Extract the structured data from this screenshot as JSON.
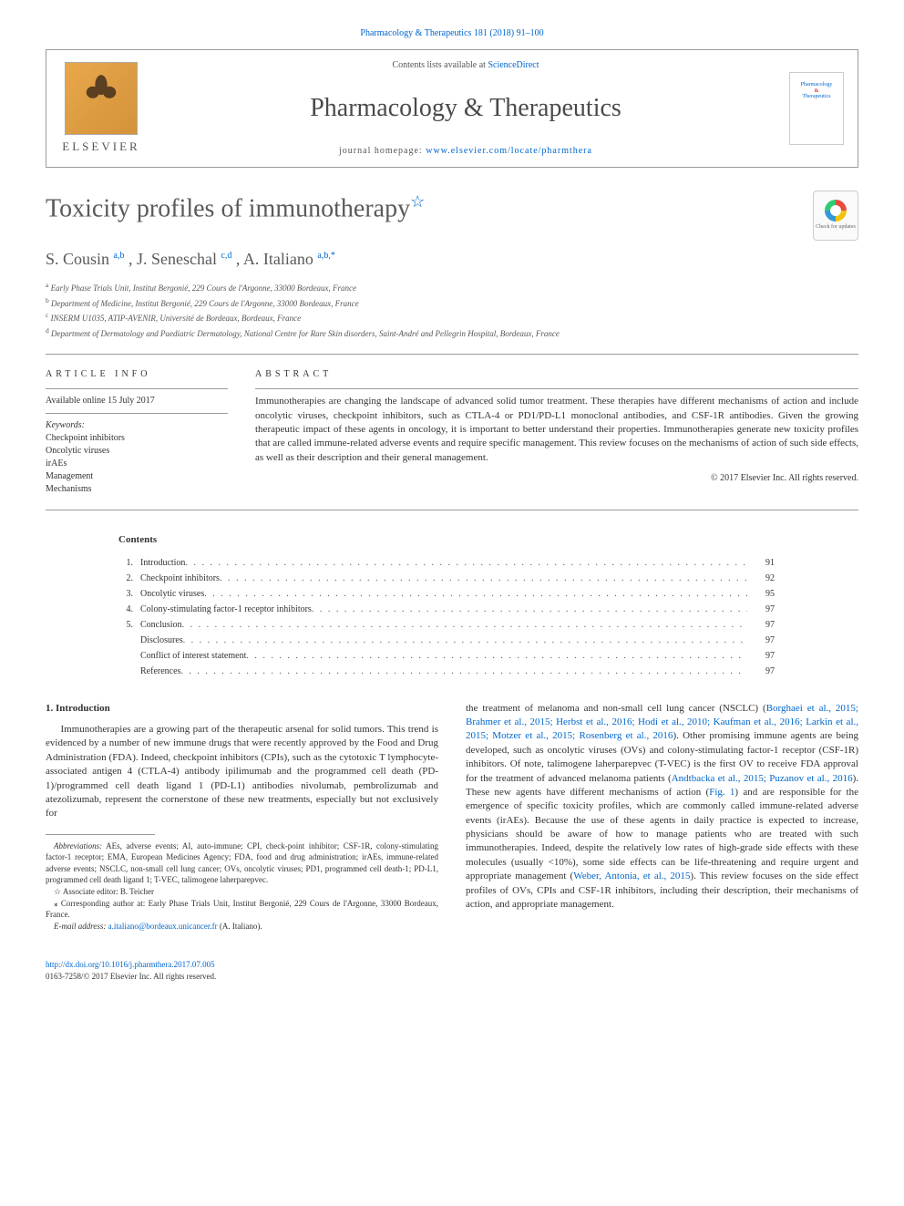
{
  "top_link": {
    "label": "Pharmacology & Therapeutics 181 (2018) 91–100"
  },
  "header": {
    "contents_prefix": "Contents lists available at ",
    "contents_link": "ScienceDirect",
    "journal": "Pharmacology & Therapeutics",
    "homepage_prefix": "journal homepage: ",
    "homepage_link": "www.elsevier.com/locate/pharmthera",
    "elsevier": "ELSEVIER",
    "cover_line1": "Pharmacology",
    "cover_line2": "&",
    "cover_line3": "Therapeutics"
  },
  "title": "Toxicity profiles of immunotherapy",
  "check_updates": "Check for updates",
  "authors_html": [
    {
      "name": "S. Cousin ",
      "sup": "a,b"
    },
    {
      "name": ", J. Seneschal ",
      "sup": "c,d"
    },
    {
      "name": ", A. Italiano ",
      "sup": "a,b,",
      "star": "*"
    }
  ],
  "affiliations": [
    {
      "sup": "a",
      "text": "Early Phase Trials Unit, Institut Bergonié, 229 Cours de l'Argonne, 33000 Bordeaux, France"
    },
    {
      "sup": "b",
      "text": "Department of Medicine, Institut Bergonié, 229 Cours de l'Argonne, 33000 Bordeaux, France"
    },
    {
      "sup": "c",
      "text": "INSERM U1035, ATIP-AVENIR, Université de Bordeaux, Bordeaux, France"
    },
    {
      "sup": "d",
      "text": "Department of Dermatology and Paediatric Dermatology, National Centre for Rare Skin disorders, Saint-André and Pellegrin Hospital, Bordeaux, France"
    }
  ],
  "article_info": {
    "heading": "ARTICLE INFO",
    "available": "Available online 15 July 2017",
    "keywords_label": "Keywords:",
    "keywords": [
      "Checkpoint inhibitors",
      "Oncolytic viruses",
      "irAEs",
      "Management",
      "Mechanisms"
    ]
  },
  "abstract": {
    "heading": "ABSTRACT",
    "text": "Immunotherapies are changing the landscape of advanced solid tumor treatment. These therapies have different mechanisms of action and include oncolytic viruses, checkpoint inhibitors, such as CTLA-4 or PD1/PD-L1 monoclonal antibodies, and CSF-1R antibodies. Given the growing therapeutic impact of these agents in oncology, it is important to better understand their properties. Immunotherapies generate new toxicity profiles that are called immune-related adverse events and require specific management. This review focuses on the mechanisms of action of such side effects, as well as their description and their general management.",
    "copyright": "© 2017 Elsevier Inc. All rights reserved."
  },
  "contents": {
    "heading": "Contents",
    "items": [
      {
        "num": "1.",
        "text": "Introduction",
        "page": "91"
      },
      {
        "num": "2.",
        "text": "Checkpoint inhibitors",
        "page": "92"
      },
      {
        "num": "3.",
        "text": "Oncolytic viruses",
        "page": "95"
      },
      {
        "num": "4.",
        "text": "Colony-stimulating factor-1 receptor inhibitors",
        "page": "97"
      },
      {
        "num": "5.",
        "text": "Conclusion",
        "page": "97"
      },
      {
        "num": "",
        "text": "Disclosures",
        "page": "97"
      },
      {
        "num": "",
        "text": "Conflict of interest statement",
        "page": "97"
      },
      {
        "num": "",
        "text": "References",
        "page": "97"
      }
    ]
  },
  "intro": {
    "heading": "1. Introduction",
    "p1": "Immunotherapies are a growing part of the therapeutic arsenal for solid tumors. This trend is evidenced by a number of new immune drugs that were recently approved by the Food and Drug Administration (FDA). Indeed, checkpoint inhibitors (CPIs), such as the cytotoxic T lymphocyte-associated antigen 4 (CTLA-4) antibody ipilimumab and the programmed cell death (PD-1)/programmed cell death ligand 1 (PD-L1) antibodies nivolumab, pembrolizumab and atezolizumab, represent the cornerstone of these new treatments, especially but not exclusively for",
    "p2a": "the treatment of melanoma and non-small cell lung cancer (NSCLC) (",
    "p2_refs": "Borghaei et al., 2015; Brahmer et al., 2015; Herbst et al., 2016; Hodi et al., 2010; Kaufman et al., 2016; Larkin et al., 2015; Motzer et al., 2015; Rosenberg et al., 2016",
    "p2b": "). Other promising immune agents are being developed, such as oncolytic viruses (OVs) and colony-stimulating factor-1 receptor (CSF-1R) inhibitors. Of note, talimogene laherparepvec (T-VEC) is the first OV to receive FDA approval for the treatment of advanced melanoma patients (",
    "p2_refs2": "Andtbacka et al., 2015; Puzanov et al., 2016",
    "p2c": "). These new agents have different mechanisms of action (",
    "p2_fig": "Fig. 1",
    "p2d": ") and are responsible for the emergence of specific toxicity profiles, which are commonly called immune-related adverse events (irAEs). Because the use of these agents in daily practice is expected to increase, physicians should be aware of how to manage patients who are treated with such immunotherapies. Indeed, despite the relatively low rates of high-grade side effects with these molecules (usually <10%), some side effects can be life-threatening and require urgent and appropriate management (",
    "p2_refs3": "Weber, Antonia, et al., 2015",
    "p2e": "). This review focuses on the side effect profiles of OVs, CPIs and CSF-1R inhibitors, including their description, their mechanisms of action, and appropriate management."
  },
  "footnotes": {
    "abbrev_label": "Abbreviations:",
    "abbrev": " AEs, adverse events; AI, auto-immune; CPI, check-point inhibitor; CSF-1R, colony-stimulating factor-1 receptor; EMA, European Medicines Agency; FDA, food and drug administration; irAEs, immune-related adverse events; NSCLC, non-small cell lung cancer; OVs, oncolytic viruses; PD1, programmed cell death-1; PD-L1, programmed cell death ligand 1; T-VEC, talimogene laherparepvec.",
    "star": "☆",
    "editor": " Associate editor: B. Teicher",
    "corr_star": "⁎",
    "corr": " Corresponding author at: Early Phase Trials Unit, Institut Bergonié, 229 Cours de l'Argonne, 33000 Bordeaux, France.",
    "email_label": "E-mail address: ",
    "email": "a.italiano@bordeaux.unicancer.fr",
    "email_suffix": " (A. Italiano)."
  },
  "footer": {
    "doi": "http://dx.doi.org/10.1016/j.pharmthera.2017.07.005",
    "issn": "0163-7258/© 2017 Elsevier Inc. All rights reserved."
  },
  "colors": {
    "link": "#0066cc",
    "text": "#333333",
    "heading_gray": "#5a5a5a",
    "rule": "#999999"
  }
}
